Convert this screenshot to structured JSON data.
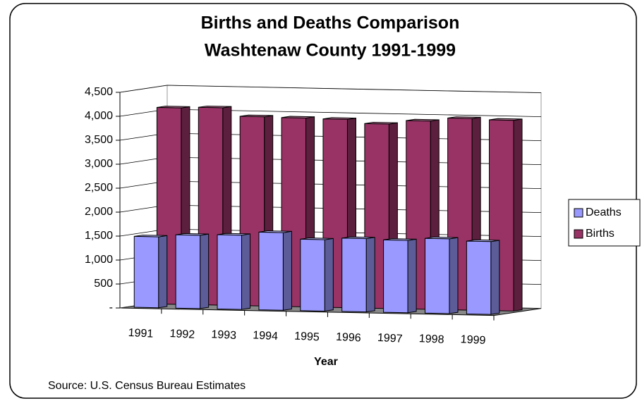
{
  "chart_data": {
    "type": "bar3d",
    "title": "Births and Deaths Comparison",
    "subtitle": "Washtenaw County 1991-1999",
    "x_label": "Year",
    "source": "Source: U.S. Census Bureau Estimates",
    "categories": [
      "1991",
      "1992",
      "1993",
      "1994",
      "1995",
      "1996",
      "1997",
      "1998",
      "1999"
    ],
    "series": [
      {
        "name": "Deaths",
        "color": "#9999ff",
        "values": [
          1480,
          1530,
          1550,
          1620,
          1490,
          1530,
          1510,
          1560,
          1520
        ]
      },
      {
        "name": "Births",
        "color": "#993366",
        "values": [
          4100,
          4120,
          3950,
          3940,
          3930,
          3850,
          3930,
          4000,
          3980
        ]
      }
    ],
    "ylim": [
      0,
      4500
    ],
    "yticks": [
      {
        "value": 0,
        "label": "-"
      },
      500,
      {
        "value": 1000,
        "label": "1,000"
      },
      {
        "value": 1500,
        "label": "1,500"
      },
      {
        "value": 2000,
        "label": "2,000"
      },
      {
        "value": 2500,
        "label": "2,500"
      },
      {
        "value": 3000,
        "label": "3,000"
      },
      {
        "value": 3500,
        "label": "3,500"
      },
      {
        "value": 4000,
        "label": "4,000"
      },
      {
        "value": 4500,
        "label": "4,500"
      }
    ],
    "grid": true,
    "legend": "right"
  }
}
